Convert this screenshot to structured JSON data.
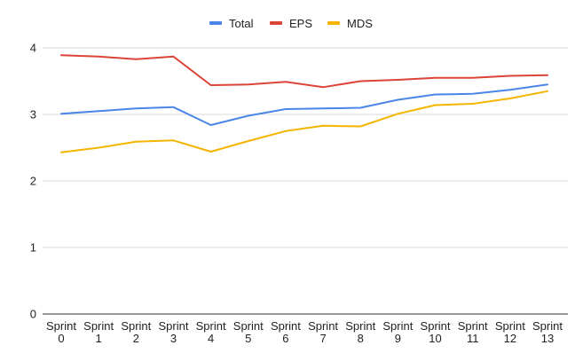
{
  "chart_data": {
    "type": "line",
    "categories": [
      [
        "Sprint",
        "0"
      ],
      [
        "Sprint",
        "1"
      ],
      [
        "Sprint",
        "2"
      ],
      [
        "Sprint",
        "3"
      ],
      [
        "Sprint",
        "4"
      ],
      [
        "Sprint",
        "5"
      ],
      [
        "Sprint",
        "6"
      ],
      [
        "Sprint",
        "7"
      ],
      [
        "Sprint",
        "8"
      ],
      [
        "Sprint",
        "9"
      ],
      [
        "Sprint",
        "10"
      ],
      [
        "Sprint",
        "11"
      ],
      [
        "Sprint",
        "12"
      ],
      [
        "Sprint",
        "13"
      ]
    ],
    "series": [
      {
        "name": "Total",
        "color": "#4a86e8",
        "values": [
          3.01,
          3.05,
          3.09,
          3.11,
          2.84,
          2.98,
          3.08,
          3.09,
          3.1,
          3.22,
          3.3,
          3.31,
          3.37,
          3.45
        ]
      },
      {
        "name": "EPS",
        "color": "#db4437",
        "values": [
          3.89,
          3.87,
          3.83,
          3.87,
          3.44,
          3.45,
          3.49,
          3.41,
          3.5,
          3.52,
          3.55,
          3.55,
          3.58,
          3.59
        ]
      },
      {
        "name": "MDS",
        "color": "#f4b400",
        "values": [
          2.43,
          2.5,
          2.59,
          2.61,
          2.44,
          2.6,
          2.75,
          2.83,
          2.82,
          3.01,
          3.14,
          3.16,
          3.24,
          3.35
        ]
      }
    ],
    "ylim": [
      0,
      4
    ],
    "yticks": [
      "0",
      "1",
      "2",
      "3",
      "4"
    ],
    "grid": true,
    "legend_position": "top-center",
    "title": "",
    "xlabel": "",
    "ylabel": ""
  }
}
